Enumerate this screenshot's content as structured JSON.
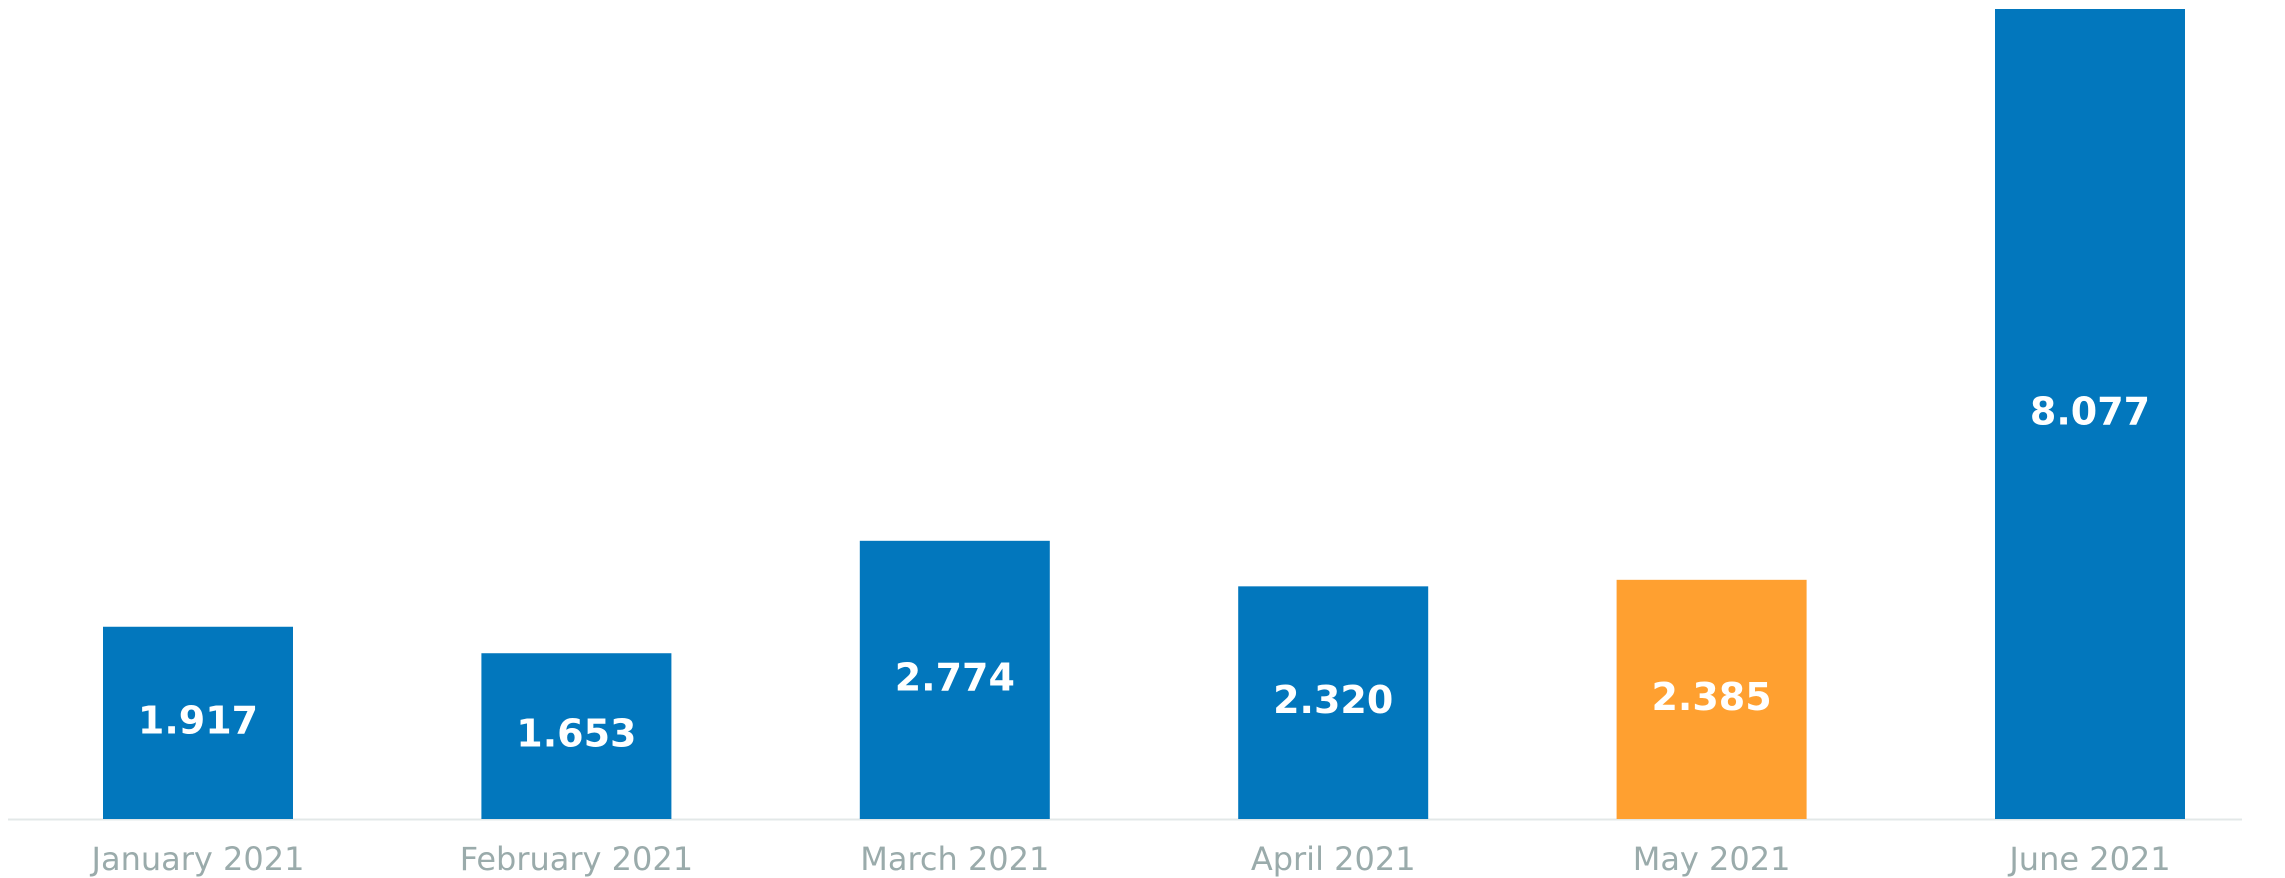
{
  "chart_data": {
    "type": "bar",
    "categories": [
      "January 2021",
      "February 2021",
      "March 2021",
      "April 2021",
      "May 2021",
      "June 2021"
    ],
    "values": [
      1.917,
      1.653,
      2.774,
      2.32,
      2.385,
      8.077
    ],
    "value_labels": [
      "1.917",
      "1.653",
      "2.774",
      "2.320",
      "2.385",
      "8.077"
    ],
    "colors": [
      "#0277bd",
      "#0277bd",
      "#0277bd",
      "#0277bd",
      "#ffa030",
      "#0277bd"
    ]
  }
}
